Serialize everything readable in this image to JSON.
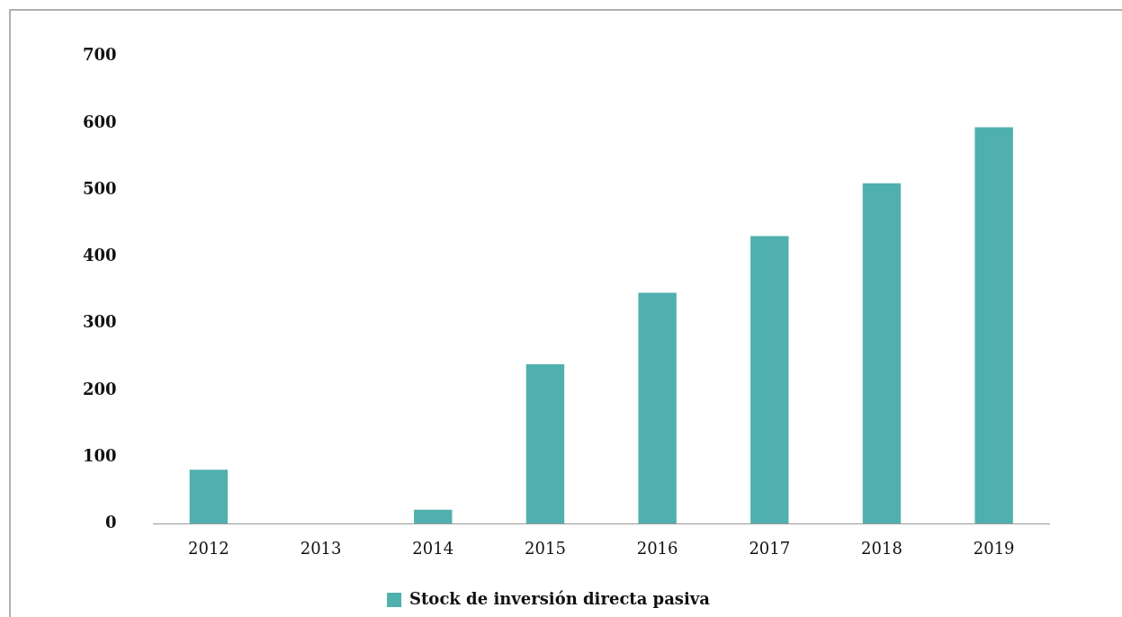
{
  "chart_data": {
    "type": "bar",
    "categories": [
      "2012",
      "2013",
      "2014",
      "2015",
      "2016",
      "2017",
      "2018",
      "2019"
    ],
    "series": [
      {
        "name": "Stock de inversión directa pasiva",
        "color": "#4fb0ae",
        "values": [
          81,
          0,
          21,
          239,
          346,
          431,
          510,
          594
        ]
      }
    ],
    "ylim": [
      0,
      700
    ],
    "yticks": [
      0,
      100,
      200,
      300,
      400,
      500,
      600,
      700
    ],
    "grid": false,
    "legend": "bottom"
  }
}
